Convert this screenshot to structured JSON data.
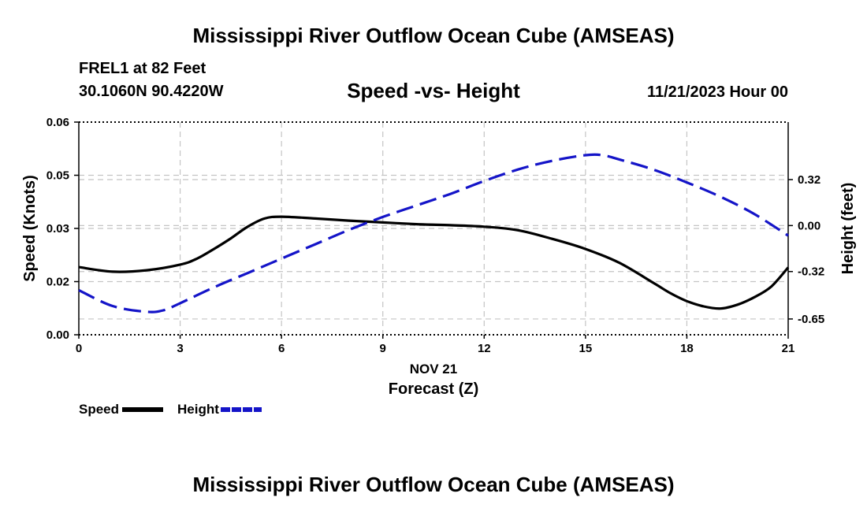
{
  "header": {
    "title": "Mississippi River Outflow Ocean Cube (AMSEAS)",
    "station": "FREL1 at 82 Feet",
    "coords": "30.1060N  90.4220W",
    "date": "11/21/2023 Hour 00"
  },
  "footer": {
    "title": "Mississippi River Outflow Ocean Cube (AMSEAS)"
  },
  "chart_data": {
    "type": "line",
    "title": "Speed -vs- Height",
    "xlabel": "Forecast (Z)",
    "x_date_label": "NOV 21",
    "ylabel": "Speed (Knots)",
    "y2label": "Height (feet)",
    "xlim": [
      0,
      21
    ],
    "ylim": [
      0,
      0.06
    ],
    "y2lim": [
      -0.76,
      0.72
    ],
    "x_ticks": [
      0,
      3,
      6,
      9,
      12,
      15,
      18,
      21
    ],
    "x_tick_labels": [
      "0",
      "3",
      "6",
      "9",
      "12",
      "15",
      "18",
      "21"
    ],
    "y_ticks": [
      0,
      0.015,
      0.03,
      0.045,
      0.06
    ],
    "y_tick_labels": [
      "0.00",
      "0.02",
      "0.03",
      "0.05",
      "0.06"
    ],
    "y2_ticks": [
      -0.65,
      -0.32,
      0.0,
      0.32
    ],
    "y2_tick_labels": [
      "-0.65",
      "-0.32",
      "0.00",
      "0.32"
    ],
    "grid": true,
    "legend_position": "bottom-left",
    "series": [
      {
        "name": "Speed",
        "axis": "left",
        "color": "#000000",
        "style": "solid",
        "x": [
          0,
          1,
          2,
          3,
          3.5,
          4,
          4.5,
          5,
          5.5,
          6,
          7,
          8,
          9,
          10,
          11,
          12,
          13,
          14,
          15,
          16,
          17,
          17.5,
          18,
          18.5,
          19,
          19.5,
          20,
          20.5,
          21
        ],
        "values": [
          0.0191,
          0.0178,
          0.0182,
          0.0198,
          0.0215,
          0.0242,
          0.0272,
          0.0305,
          0.0328,
          0.0333,
          0.0328,
          0.0322,
          0.0317,
          0.0312,
          0.0309,
          0.0305,
          0.0295,
          0.0271,
          0.0242,
          0.0203,
          0.0147,
          0.0118,
          0.0095,
          0.008,
          0.0074,
          0.0085,
          0.0106,
          0.0136,
          0.019
        ]
      },
      {
        "name": "Height",
        "axis": "right",
        "color": "#1414c8",
        "style": "dashed",
        "x": [
          0,
          1,
          2,
          2.5,
          3,
          4,
          5,
          6,
          7,
          8,
          9,
          10,
          11,
          12,
          13,
          14,
          15,
          15.5,
          16,
          17,
          18,
          19,
          20,
          21
        ],
        "values": [
          -0.45,
          -0.56,
          -0.6,
          -0.59,
          -0.54,
          -0.43,
          -0.33,
          -0.23,
          -0.13,
          -0.03,
          0.06,
          0.14,
          0.22,
          0.31,
          0.39,
          0.45,
          0.49,
          0.49,
          0.46,
          0.39,
          0.3,
          0.2,
          0.08,
          -0.07
        ]
      }
    ]
  }
}
